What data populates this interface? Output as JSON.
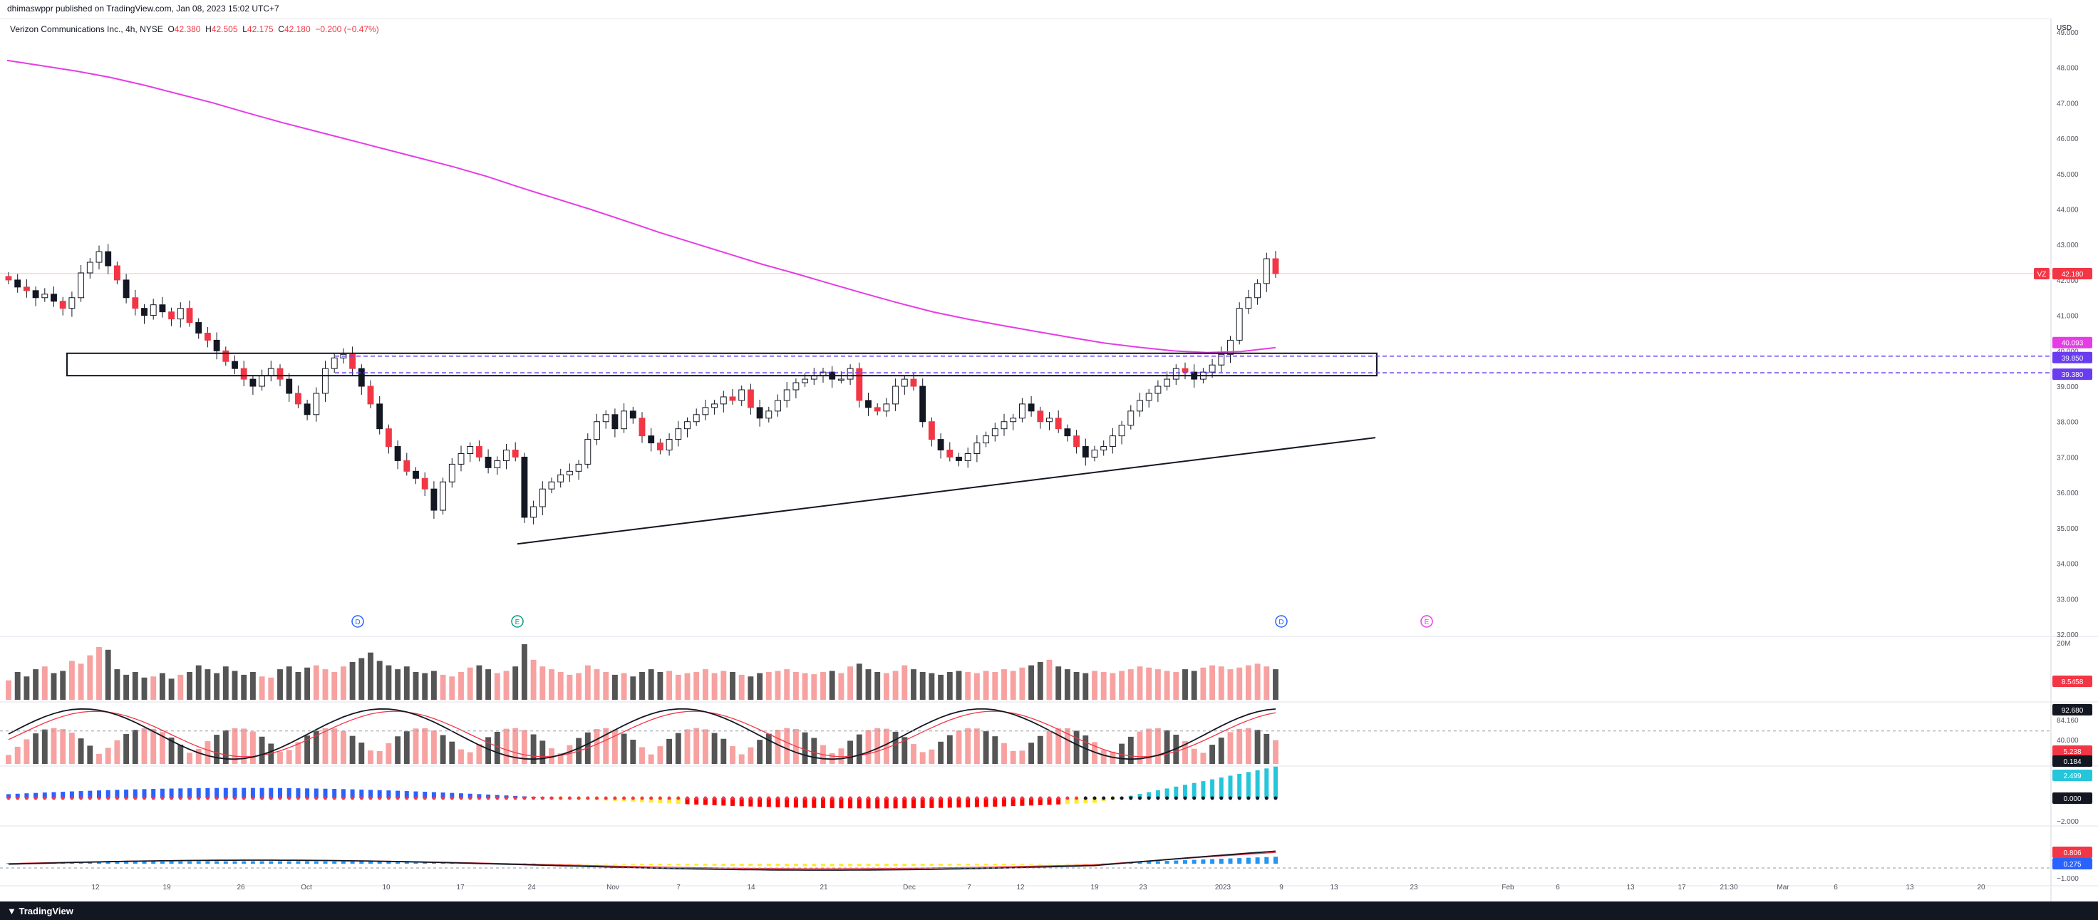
{
  "header": {
    "published": "dhimaswppr published on TradingView.com, Jan 08, 2023 15:02 UTC+7"
  },
  "legend": {
    "symbol": "Verizon Communications Inc., 4h, NYSE",
    "o_label": "O",
    "o": "42.380",
    "h_label": "H",
    "h": "42.505",
    "l_label": "L",
    "l": "42.175",
    "c_label": "C",
    "c": "42.180",
    "change": "−0.200 (−0.47%)"
  },
  "footer": {
    "brand": "TradingView"
  },
  "colors": {
    "up": "#f7a1a1",
    "down": "#555555",
    "ma": "#e63ce6",
    "zone": "#6a3cf0",
    "price": "#f23645"
  },
  "chart_data": {
    "type": "candlestick",
    "currency_label": "USD",
    "price_axis_ticks": [
      "49.000",
      "48.000",
      "47.000",
      "46.000",
      "45.000",
      "44.000",
      "43.000",
      "42.000",
      "41.000",
      "40.000",
      "39.000",
      "38.000",
      "37.000",
      "36.000",
      "35.000",
      "34.000",
      "33.000",
      "32.000"
    ],
    "ylim": [
      32.0,
      49.3
    ],
    "time_axis_ticks": [
      "12",
      "19",
      "26",
      "Oct",
      "10",
      "17",
      "24",
      "Nov",
      "7",
      "14",
      "21",
      "Dec",
      "7",
      "12",
      "19",
      "23",
      "2023",
      "9",
      "13",
      "23",
      "Feb",
      "6",
      "13",
      "17",
      "21:30",
      "Mar",
      "6",
      "13",
      "20"
    ],
    "price_labels": {
      "symbol_tag": "VZ",
      "last": "42.180",
      "ma": "40.093",
      "zone_top": "39.850",
      "zone_bottom": "39.380"
    },
    "levels": {
      "last": 42.18,
      "zone_top": 39.85,
      "zone_bottom": 39.38,
      "ma_end": 40.093
    },
    "closes": [
      42.0,
      41.8,
      41.7,
      41.5,
      41.6,
      41.4,
      41.2,
      41.5,
      42.2,
      42.5,
      42.8,
      42.4,
      42.0,
      41.5,
      41.2,
      41.0,
      41.3,
      41.1,
      40.9,
      41.2,
      40.8,
      40.5,
      40.3,
      40.0,
      39.7,
      39.5,
      39.2,
      39.0,
      39.3,
      39.5,
      39.2,
      38.8,
      38.5,
      38.2,
      38.8,
      39.5,
      39.8,
      39.9,
      39.5,
      39.0,
      38.5,
      37.8,
      37.3,
      36.9,
      36.6,
      36.4,
      36.1,
      35.5,
      36.3,
      36.8,
      37.1,
      37.3,
      37.0,
      36.7,
      36.9,
      37.2,
      37.0,
      35.3,
      35.6,
      36.1,
      36.3,
      36.5,
      36.6,
      36.8,
      37.5,
      38.0,
      38.2,
      37.8,
      38.3,
      38.1,
      37.6,
      37.4,
      37.2,
      37.5,
      37.8,
      38.0,
      38.2,
      38.4,
      38.5,
      38.7,
      38.6,
      38.9,
      38.4,
      38.1,
      38.3,
      38.6,
      38.9,
      39.1,
      39.2,
      39.3,
      39.4,
      39.2,
      39.2,
      39.5,
      38.6,
      38.4,
      38.3,
      38.5,
      39.0,
      39.2,
      39.0,
      38.0,
      37.5,
      37.2,
      37.0,
      36.9,
      37.1,
      37.4,
      37.6,
      37.8,
      38.0,
      38.1,
      38.5,
      38.3,
      38.0,
      38.1,
      37.8,
      37.6,
      37.3,
      37.0,
      37.2,
      37.3,
      37.6,
      37.9,
      38.3,
      38.6,
      38.8,
      39.0,
      39.2,
      39.5,
      39.4,
      39.2,
      39.4,
      39.6,
      39.9,
      40.3,
      41.2,
      41.5,
      41.9,
      42.6,
      42.18
    ],
    "ma_series": [
      48.2,
      48.05,
      47.9,
      47.72,
      47.5,
      47.25,
      47.0,
      46.72,
      46.45,
      46.2,
      45.95,
      45.7,
      45.45,
      45.2,
      44.92,
      44.6,
      44.3,
      44.0,
      43.68,
      43.35,
      43.05,
      42.75,
      42.45,
      42.18,
      41.9,
      41.62,
      41.35,
      41.1,
      40.9,
      40.72,
      40.55,
      40.38,
      40.22,
      40.1,
      40.0,
      39.95,
      39.98,
      40.093
    ],
    "volume": [
      0.35,
      0.5,
      0.42,
      0.55,
      0.6,
      0.48,
      0.52,
      0.7,
      0.65,
      0.8,
      0.95,
      0.9,
      0.55,
      0.45,
      0.5,
      0.4,
      0.42,
      0.48,
      0.38,
      0.45,
      0.5,
      0.62,
      0.55,
      0.48,
      0.6,
      0.52,
      0.45,
      0.5,
      0.42,
      0.4,
      0.55,
      0.6,
      0.5,
      0.58,
      0.62,
      0.55,
      0.5,
      0.6,
      0.68,
      0.75,
      0.85,
      0.7,
      0.62,
      0.55,
      0.6,
      0.5,
      0.48,
      0.52,
      0.45,
      0.42,
      0.5,
      0.58,
      0.62,
      0.55,
      0.48,
      0.52,
      0.6,
      1.0,
      0.72,
      0.6,
      0.55,
      0.5,
      0.45,
      0.48,
      0.62,
      0.55,
      0.5,
      0.45,
      0.48,
      0.42,
      0.5,
      0.55,
      0.5,
      0.52,
      0.45,
      0.48,
      0.5,
      0.55,
      0.48,
      0.52,
      0.5,
      0.45,
      0.42,
      0.48,
      0.5,
      0.52,
      0.55,
      0.5,
      0.48,
      0.46,
      0.5,
      0.52,
      0.48,
      0.6,
      0.65,
      0.55,
      0.5,
      0.48,
      0.52,
      0.62,
      0.55,
      0.5,
      0.48,
      0.45,
      0.5,
      0.52,
      0.5,
      0.48,
      0.52,
      0.5,
      0.55,
      0.52,
      0.58,
      0.62,
      0.68,
      0.72,
      0.6,
      0.55,
      0.5,
      0.48,
      0.52,
      0.5,
      0.48,
      0.52,
      0.55,
      0.6,
      0.58,
      0.55,
      0.52,
      0.5,
      0.55,
      0.52,
      0.58,
      0.62,
      0.6,
      0.55,
      0.58,
      0.62,
      0.65,
      0.6,
      0.55
    ],
    "volume_axis": {
      "top": "20M",
      "label": "8.5458"
    },
    "stoch_axis": {
      "k": "92.680",
      "d": "84.160",
      "mid": "40.000",
      "low1": "5.238",
      "low2": "0.184"
    },
    "squeeze_axis": {
      "top": "2.499",
      "zero": "0.000",
      "low": "−2.000"
    },
    "macd_axis": {
      "v1": "0.806",
      "v2": "0.275",
      "low": "−1.000"
    },
    "event_markers": [
      "D",
      "E",
      "D",
      "E"
    ]
  }
}
